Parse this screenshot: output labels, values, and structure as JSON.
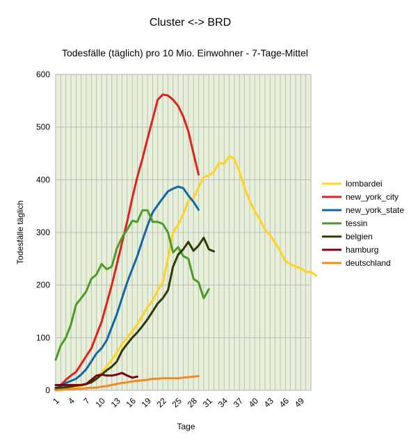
{
  "chart_data": {
    "type": "line",
    "title": "Cluster <-> BRD",
    "subtitle": "Todesfälle (täglich) pro 10 Mio. Einwohner - 7-Tage-Mittel",
    "xlabel": "Tage",
    "ylabel": "Todesfälle täglich",
    "xlim": [
      1,
      50
    ],
    "ylim": [
      0,
      600
    ],
    "x_ticks": [
      1,
      4,
      7,
      10,
      13,
      16,
      19,
      22,
      25,
      28,
      31,
      34,
      37,
      40,
      43,
      46,
      49
    ],
    "y_ticks": [
      0,
      100,
      200,
      300,
      400,
      500,
      600
    ],
    "grid": true,
    "legend_position": "right",
    "background": "#e6f0d8",
    "series": [
      {
        "name": "lombardei",
        "color": "#ffd320",
        "values": [
          0,
          1,
          2,
          3,
          5,
          8,
          12,
          18,
          25,
          34,
          45,
          58,
          72,
          88,
          100,
          112,
          125,
          142,
          158,
          170,
          190,
          205,
          250,
          300,
          315,
          335,
          360,
          365,
          385,
          405,
          408,
          415,
          432,
          430,
          445,
          440,
          415,
          385,
          360,
          340,
          325,
          305,
          295,
          280,
          265,
          245,
          240,
          235,
          232,
          225,
          225,
          218
        ]
      },
      {
        "name": "new_york_city",
        "color": "#e0201a",
        "values": [
          2,
          10,
          20,
          28,
          35,
          50,
          65,
          80,
          105,
          130,
          165,
          200,
          240,
          280,
          320,
          365,
          405,
          440,
          478,
          515,
          552,
          562,
          560,
          552,
          540,
          520,
          492,
          450,
          410
        ]
      },
      {
        "name": "new_york_state",
        "color": "#1166aa",
        "values": [
          2,
          8,
          14,
          18,
          22,
          30,
          40,
          55,
          70,
          80,
          95,
          120,
          145,
          175,
          205,
          230,
          255,
          285,
          313,
          338,
          352,
          365,
          378,
          383,
          387,
          384,
          370,
          358,
          343
        ]
      },
      {
        "name": "tessin",
        "color": "#4d9a26",
        "values": [
          58,
          85,
          100,
          125,
          163,
          175,
          188,
          212,
          220,
          240,
          230,
          235,
          270,
          290,
          305,
          322,
          320,
          342,
          342,
          320,
          320,
          316,
          300,
          262,
          272,
          255,
          250,
          212,
          205,
          175,
          192
        ]
      },
      {
        "name": "belgien",
        "color": "#2d3a05",
        "values": [
          5,
          5,
          6,
          7,
          9,
          10,
          12,
          15,
          22,
          30,
          38,
          45,
          55,
          75,
          88,
          100,
          110,
          122,
          135,
          150,
          165,
          175,
          190,
          235,
          258,
          268,
          282,
          265,
          275,
          290,
          268,
          264
        ]
      },
      {
        "name": "hamburg",
        "color": "#7a0015",
        "values": [
          10,
          10,
          10,
          10,
          10,
          10,
          12,
          20,
          28,
          30,
          28,
          28,
          30,
          33,
          28,
          24,
          26
        ]
      },
      {
        "name": "deutschland",
        "color": "#f08a20",
        "values": [
          0,
          1,
          2,
          2,
          3,
          3,
          4,
          5,
          5,
          7,
          8,
          10,
          12,
          14,
          15,
          17,
          18,
          19,
          20,
          22,
          22,
          23,
          23,
          23,
          23,
          24,
          25,
          26,
          27
        ]
      }
    ]
  }
}
